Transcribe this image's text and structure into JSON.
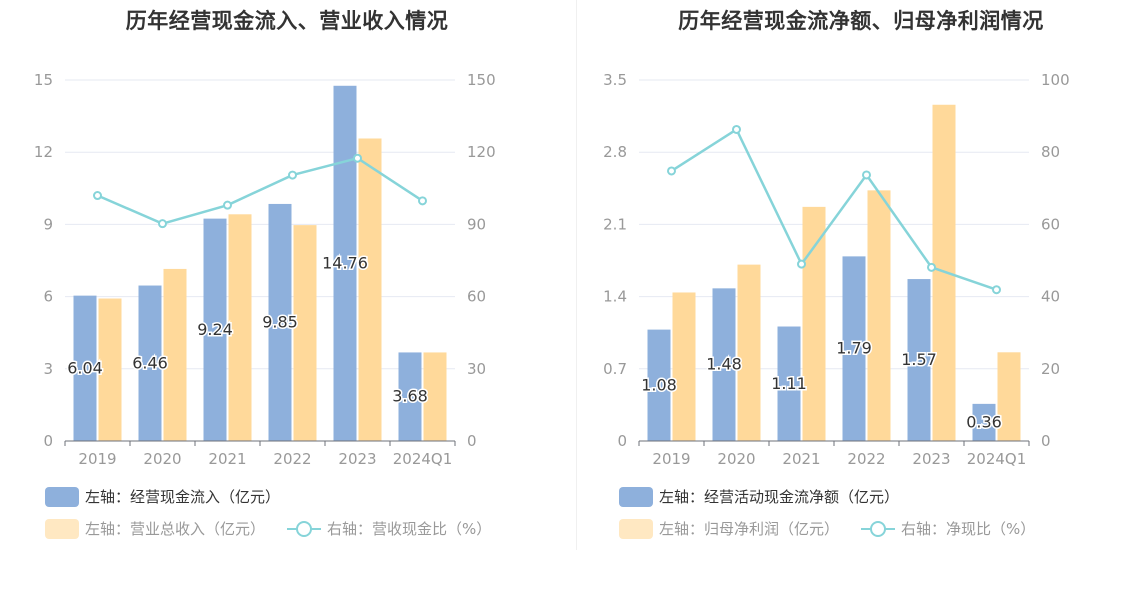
{
  "colors": {
    "bar_primary": "#8eb0dc",
    "bar_secondary": "#ffd99a",
    "line": "#86d4d9",
    "legend_secondary_swatch": "#ffe8c2",
    "axis_text": "#999999",
    "grid": "#e6e9f2"
  },
  "chart_data": [
    {
      "type": "bar",
      "title": "历年经营现金流入、营业收入情况",
      "categories": [
        "2019",
        "2020",
        "2021",
        "2022",
        "2023",
        "2024Q1"
      ],
      "y_left": {
        "ticks": [
          "0",
          "3",
          "6",
          "9",
          "12",
          "15"
        ],
        "range": [
          0,
          15
        ]
      },
      "y_right": {
        "ticks": [
          "0",
          "30",
          "60",
          "90",
          "120",
          "150"
        ],
        "range": [
          0,
          150
        ]
      },
      "series": [
        {
          "name": "左轴：经营现金流入（亿元）",
          "type": "bar",
          "axis": "left",
          "values": [
            6.04,
            6.46,
            9.24,
            9.85,
            14.76,
            3.68
          ],
          "labels": [
            "6.04",
            "6.46",
            "9.24",
            "9.85",
            "14.76",
            "3.68"
          ]
        },
        {
          "name": "左轴：营业总收入（亿元）",
          "type": "bar",
          "axis": "left",
          "values": [
            5.92,
            7.15,
            9.42,
            8.97,
            12.57,
            3.68
          ]
        },
        {
          "name": "右轴：营收现金比（%）",
          "type": "line",
          "axis": "right",
          "values": [
            102,
            90.3,
            98,
            110.5,
            117.5,
            99.8
          ]
        }
      ],
      "legend": [
        {
          "text": "左轴：经营现金流入（亿元）",
          "kind": "bar",
          "dim": false
        },
        {
          "text": "左轴：营业总收入（亿元）",
          "kind": "bar2",
          "dim": true
        },
        {
          "text": "右轴：营收现金比（%）",
          "kind": "line",
          "dim": true
        }
      ]
    },
    {
      "type": "bar",
      "title": "历年经营现金流净额、归母净利润情况",
      "categories": [
        "2019",
        "2020",
        "2021",
        "2022",
        "2023",
        "2024Q1"
      ],
      "y_left": {
        "ticks": [
          "0",
          "0.7",
          "1.4",
          "2.1",
          "2.8",
          "3.5"
        ],
        "range": [
          0,
          3.5
        ]
      },
      "y_right": {
        "ticks": [
          "0",
          "20",
          "40",
          "60",
          "80",
          "100"
        ],
        "range": [
          0,
          100
        ]
      },
      "series": [
        {
          "name": "左轴：经营活动现金流净额（亿元）",
          "type": "bar",
          "axis": "left",
          "values": [
            1.08,
            1.48,
            1.11,
            1.79,
            1.57,
            0.36
          ],
          "labels": [
            "1.08",
            "1.48",
            "1.11",
            "1.79",
            "1.57",
            "0.36"
          ]
        },
        {
          "name": "左轴：归母净利润（亿元）",
          "type": "bar",
          "axis": "left",
          "values": [
            1.44,
            1.71,
            2.27,
            2.43,
            3.26,
            0.86
          ]
        },
        {
          "name": "右轴：净现比（%）",
          "type": "line",
          "axis": "right",
          "values": [
            74.8,
            86.3,
            49,
            73.7,
            48.1,
            41.9
          ]
        }
      ],
      "legend": [
        {
          "text": "左轴：经营活动现金流净额（亿元）",
          "kind": "bar",
          "dim": false
        },
        {
          "text": "左轴：归母净利润（亿元）",
          "kind": "bar2",
          "dim": true
        },
        {
          "text": "右轴：净现比（%）",
          "kind": "line",
          "dim": true
        }
      ]
    }
  ]
}
